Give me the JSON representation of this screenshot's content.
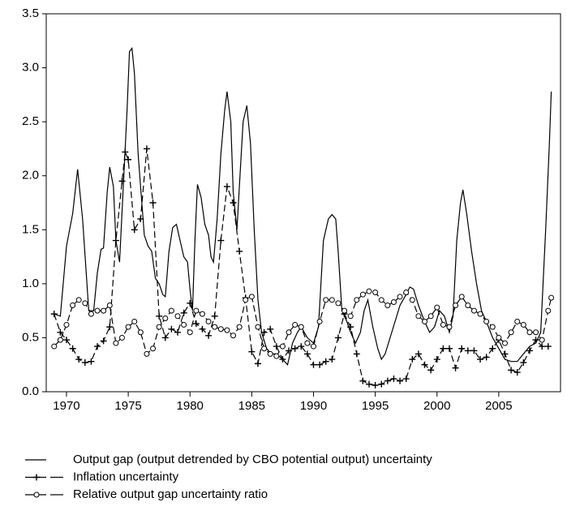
{
  "chart_data": {
    "type": "line",
    "xlim": [
      1968.36,
      2010
    ],
    "ylim": [
      0,
      3.5
    ],
    "xticks": [
      1970,
      1975,
      1980,
      1985,
      1990,
      1995,
      2000,
      2005
    ],
    "yticks": [
      {
        "value": 0,
        "label": "0.0"
      },
      {
        "value": 0.5,
        "label": "0.5"
      },
      {
        "value": 1,
        "label": "1.0"
      },
      {
        "value": 1.5,
        "label": "1.5"
      },
      {
        "value": 2,
        "label": "2.0"
      },
      {
        "value": 2.5,
        "label": "2.5"
      },
      {
        "value": 3,
        "label": "3.0"
      },
      {
        "value": 3.5,
        "label": "3.5"
      }
    ],
    "grid": false,
    "series": [
      {
        "name": "Output gap (output detrended by CBO potential output) uncertainty",
        "color": "#000000",
        "style": "solid",
        "marker": "none",
        "x": [
          1969,
          1969.5,
          1970,
          1970.5,
          1970.9,
          1971.3,
          1971.6,
          1971.8,
          1972.2,
          1972.5,
          1972.8,
          1973,
          1973.3,
          1973.5,
          1973.8,
          1974,
          1974.3,
          1974.6,
          1974.9,
          1975.1,
          1975.3,
          1975.5,
          1975.8,
          1976,
          1976.3,
          1976.6,
          1976.9,
          1977.2,
          1977.5,
          1977.8,
          1978,
          1978.3,
          1978.6,
          1978.9,
          1979.2,
          1979.5,
          1979.8,
          1980,
          1980.2,
          1980.4,
          1980.6,
          1980.9,
          1981.2,
          1981.5,
          1981.7,
          1981.9,
          1982.2,
          1982.5,
          1982.8,
          1983,
          1983.3,
          1983.5,
          1983.8,
          1984,
          1984.3,
          1984.6,
          1984.9,
          1985.2,
          1985.5,
          1985.8,
          1986.2,
          1986.6,
          1987,
          1987.5,
          1987.9,
          1988.3,
          1988.7,
          1989,
          1989.5,
          1990,
          1990.4,
          1990.8,
          1991.2,
          1991.5,
          1991.8,
          1992,
          1992.3,
          1992.7,
          1993,
          1993.4,
          1993.8,
          1994.1,
          1994.4,
          1994.8,
          1995.2,
          1995.5,
          1995.8,
          1996.2,
          1996.6,
          1997,
          1997.5,
          1997.8,
          1998.1,
          1998.5,
          1999,
          1999.4,
          1999.8,
          2000.2,
          2000.6,
          2001,
          2001.3,
          2001.6,
          2001.9,
          2002.1,
          2002.4,
          2002.8,
          2003.2,
          2003.6,
          2004,
          2004.5,
          2005,
          2005.5,
          2006,
          2006.5,
          2007,
          2007.5,
          2008,
          2008.4,
          2008.8,
          2009.1,
          2009.25
        ],
        "values": [
          0.72,
          0.7,
          1.35,
          1.65,
          2.06,
          1.6,
          1.1,
          0.75,
          0.75,
          1.1,
          1.32,
          1.33,
          1.85,
          2.08,
          1.9,
          1.4,
          1.2,
          1.9,
          2.6,
          3.15,
          3.18,
          2.95,
          2.2,
          1.9,
          1.45,
          1.35,
          1.3,
          1.05,
          1.0,
          0.9,
          0.88,
          1.3,
          1.52,
          1.55,
          1.4,
          1.25,
          1.2,
          0.95,
          0.75,
          1.4,
          1.92,
          1.8,
          1.55,
          1.45,
          1.25,
          1.2,
          1.6,
          2.2,
          2.6,
          2.78,
          2.5,
          1.85,
          1.5,
          1.9,
          2.5,
          2.65,
          2.3,
          1.5,
          0.85,
          0.55,
          0.4,
          0.35,
          0.35,
          0.3,
          0.25,
          0.45,
          0.55,
          0.6,
          0.5,
          0.45,
          0.6,
          1.4,
          1.6,
          1.64,
          1.6,
          1.3,
          0.75,
          0.65,
          0.55,
          0.45,
          0.55,
          0.75,
          0.85,
          0.6,
          0.4,
          0.3,
          0.35,
          0.5,
          0.65,
          0.8,
          0.9,
          0.97,
          0.95,
          0.8,
          0.65,
          0.55,
          0.6,
          0.75,
          0.7,
          0.55,
          0.7,
          1.4,
          1.75,
          1.87,
          1.65,
          1.3,
          1.0,
          0.75,
          0.65,
          0.5,
          0.4,
          0.3,
          0.28,
          0.28,
          0.35,
          0.42,
          0.45,
          0.55,
          1.5,
          2.3,
          2.78
        ]
      },
      {
        "name": "Inflation uncertainty",
        "color": "#000000",
        "style": "dashed",
        "marker": "plus",
        "x": [
          1969,
          1969.5,
          1970,
          1970.5,
          1971,
          1971.5,
          1972,
          1972.5,
          1973,
          1973.5,
          1974,
          1974.5,
          1974.75,
          1975,
          1975.5,
          1976,
          1976.5,
          1977,
          1977.5,
          1978,
          1978.5,
          1979,
          1979.5,
          1980,
          1980.5,
          1981,
          1981.5,
          1982,
          1982.5,
          1983,
          1983.5,
          1984,
          1984.5,
          1985,
          1985.5,
          1986,
          1986.5,
          1987,
          1987.5,
          1988,
          1988.5,
          1989,
          1989.5,
          1990,
          1990.5,
          1991,
          1991.5,
          1992,
          1992.5,
          1993,
          1993.5,
          1994,
          1994.5,
          1995,
          1995.5,
          1996,
          1996.5,
          1997,
          1997.5,
          1998,
          1998.5,
          1999,
          1999.5,
          2000,
          2000.5,
          2001,
          2001.5,
          2002,
          2002.5,
          2003,
          2003.5,
          2004,
          2004.5,
          2005,
          2005.5,
          2006,
          2006.5,
          2007,
          2007.5,
          2008,
          2008.5,
          2009
        ],
        "values": [
          0.72,
          0.55,
          0.48,
          0.4,
          0.3,
          0.27,
          0.28,
          0.42,
          0.47,
          0.6,
          1.4,
          1.95,
          2.22,
          2.15,
          1.5,
          1.6,
          2.25,
          1.75,
          0.7,
          0.5,
          0.58,
          0.55,
          0.73,
          0.82,
          0.63,
          0.58,
          0.52,
          0.7,
          1.4,
          1.9,
          1.75,
          1.3,
          0.87,
          0.37,
          0.26,
          0.55,
          0.58,
          0.42,
          0.3,
          0.38,
          0.4,
          0.42,
          0.35,
          0.25,
          0.25,
          0.28,
          0.3,
          0.5,
          0.72,
          0.6,
          0.35,
          0.1,
          0.07,
          0.06,
          0.07,
          0.1,
          0.12,
          0.1,
          0.12,
          0.3,
          0.35,
          0.25,
          0.2,
          0.3,
          0.4,
          0.4,
          0.22,
          0.4,
          0.38,
          0.38,
          0.3,
          0.32,
          0.4,
          0.48,
          0.35,
          0.2,
          0.18,
          0.27,
          0.38,
          0.48,
          0.42,
          0.42
        ]
      },
      {
        "name": "Relative output gap uncertainty ratio",
        "color": "#000000",
        "style": "dashed",
        "marker": "circle",
        "x": [
          1969,
          1969.5,
          1970,
          1970.5,
          1971,
          1971.5,
          1972,
          1972.5,
          1973,
          1973.5,
          1974,
          1974.5,
          1975,
          1975.5,
          1976,
          1976.5,
          1977,
          1977.5,
          1978,
          1978.5,
          1979,
          1979.5,
          1980,
          1980.5,
          1981,
          1981.5,
          1982,
          1982.5,
          1983,
          1983.5,
          1984,
          1984.5,
          1985,
          1985.5,
          1986,
          1986.5,
          1987,
          1987.5,
          1988,
          1988.5,
          1989,
          1989.5,
          1990,
          1990.5,
          1991,
          1991.5,
          1992,
          1992.5,
          1993,
          1993.5,
          1994,
          1994.5,
          1995,
          1995.5,
          1996,
          1996.5,
          1997,
          1997.5,
          1998,
          1998.5,
          1999,
          1999.5,
          2000,
          2000.5,
          2001,
          2001.5,
          2002,
          2002.5,
          2003,
          2003.5,
          2004,
          2004.5,
          2005,
          2005.5,
          2006,
          2006.5,
          2007,
          2007.5,
          2008,
          2008.5,
          2009,
          2009.25
        ],
        "values": [
          0.42,
          0.48,
          0.62,
          0.8,
          0.85,
          0.82,
          0.72,
          0.75,
          0.75,
          0.8,
          0.45,
          0.5,
          0.6,
          0.65,
          0.55,
          0.35,
          0.4,
          0.6,
          0.68,
          0.75,
          0.7,
          0.62,
          0.55,
          0.75,
          0.72,
          0.65,
          0.6,
          0.58,
          0.57,
          0.52,
          0.6,
          0.85,
          0.88,
          0.6,
          0.4,
          0.35,
          0.33,
          0.42,
          0.55,
          0.62,
          0.6,
          0.45,
          0.42,
          0.65,
          0.85,
          0.85,
          0.82,
          0.75,
          0.7,
          0.85,
          0.9,
          0.93,
          0.92,
          0.85,
          0.8,
          0.83,
          0.88,
          0.92,
          0.85,
          0.7,
          0.65,
          0.7,
          0.78,
          0.62,
          0.6,
          0.8,
          0.88,
          0.8,
          0.75,
          0.72,
          0.65,
          0.6,
          0.5,
          0.45,
          0.55,
          0.65,
          0.62,
          0.55,
          0.55,
          0.48,
          0.75,
          0.87
        ]
      }
    ]
  }
}
